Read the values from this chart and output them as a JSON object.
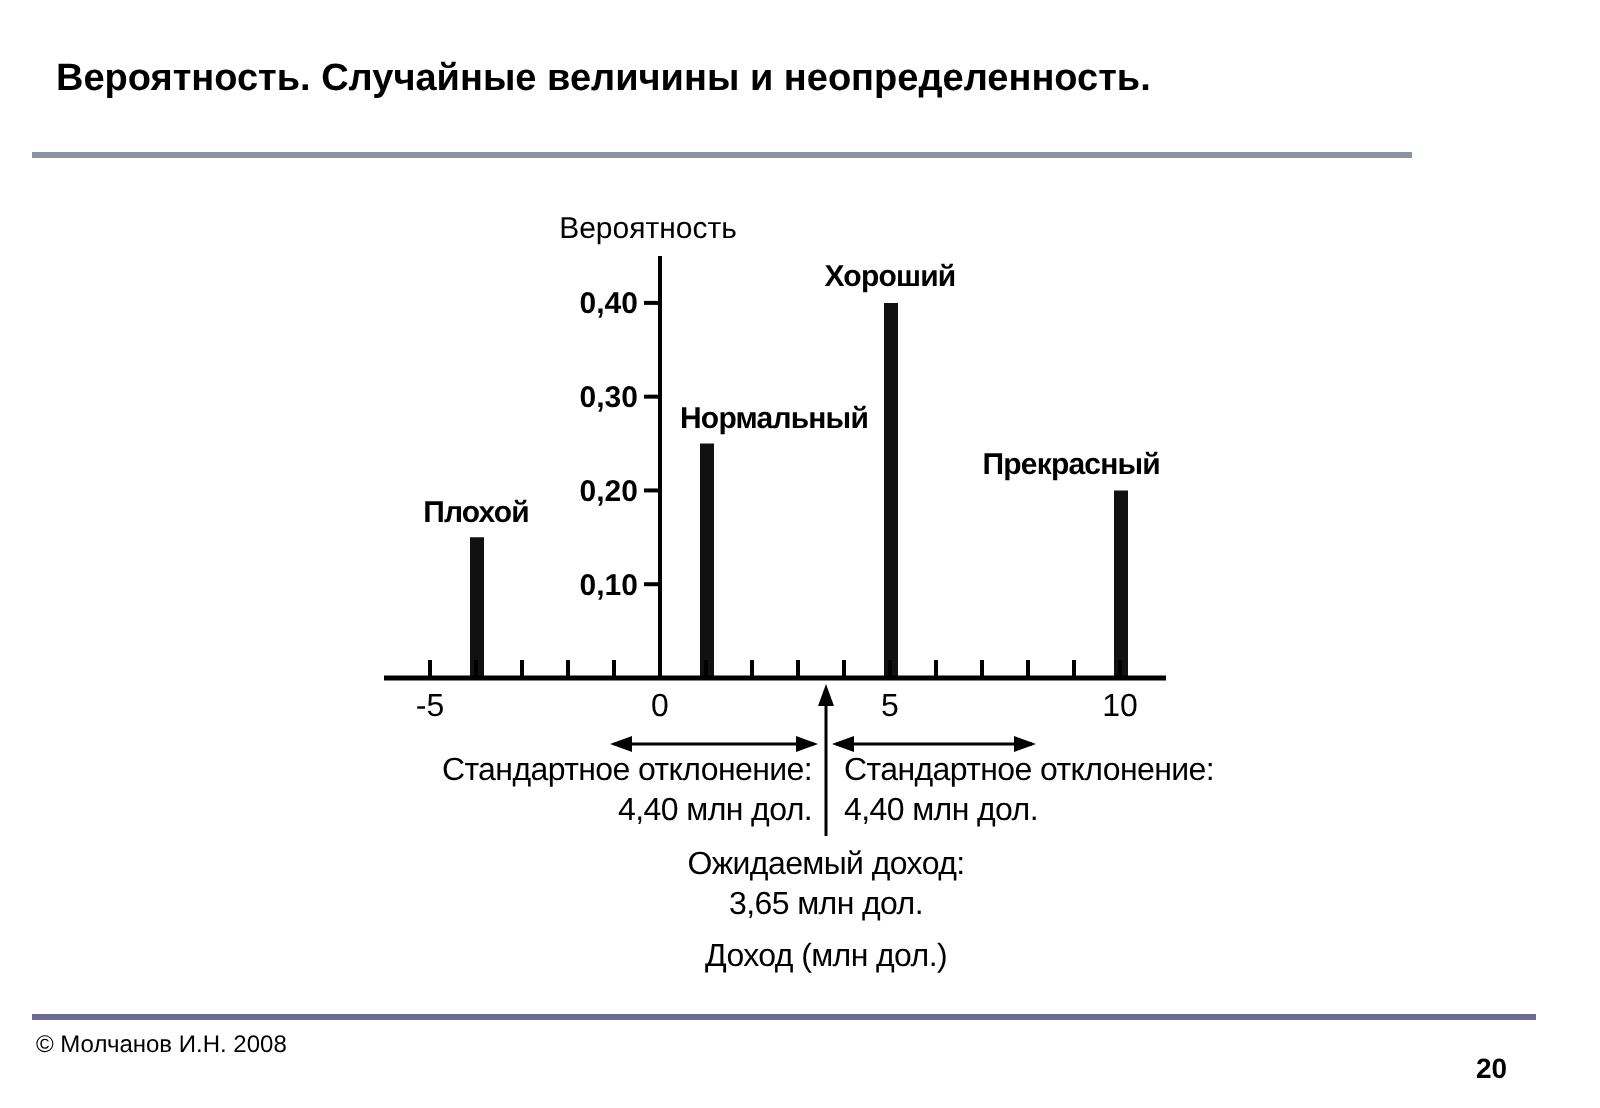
{
  "chart_data": {
    "type": "bar",
    "title": "Вероятность. Случайные величины и неопределенность.",
    "ylabel": "Вероятность",
    "x": [
      -4,
      1,
      5,
      10
    ],
    "values": [
      0.15,
      0.25,
      0.4,
      0.2
    ],
    "color": "#111111",
    "xlim": [
      -6,
      11
    ],
    "xticks": [
      -5,
      {
        "value": -4,
        "label": null
      },
      {
        "value": -3,
        "label": null
      },
      {
        "value": -2,
        "label": null
      },
      {
        "value": -1,
        "label": null
      },
      0,
      {
        "value": 1,
        "label": null
      },
      {
        "value": 2,
        "label": null
      },
      {
        "value": 3,
        "label": null
      },
      {
        "value": 4,
        "label": null
      },
      5,
      {
        "value": 6,
        "label": null
      },
      {
        "value": 7,
        "label": null
      },
      {
        "value": 8,
        "label": null
      },
      {
        "value": 9,
        "label": null
      },
      10
    ],
    "ylim": [
      0,
      0.45
    ],
    "yticks": [
      {
        "value": 0.1,
        "label": "0,10"
      },
      {
        "value": 0.2,
        "label": "0,20"
      },
      {
        "value": 0.3,
        "label": "0,30"
      },
      {
        "value": 0.4,
        "label": "0,40"
      }
    ],
    "annotations": [
      {
        "text": "Плохой",
        "x": -4,
        "y": 0.15
      },
      {
        "text": "Нормальный",
        "x": 1,
        "y": 0.25
      },
      {
        "text": "Хороший",
        "x": 5,
        "y": 0.4
      },
      {
        "text": "Прекрасный",
        "x": 10,
        "y": 0.2
      },
      "Стандартное отклонение:\n4,40 млн дол.",
      "Стандартное отклонение:\n4,40 млн дол.",
      "Ожидаемый доход:\n3,65 млн дол.",
      "Доход (млн дол.)",
      "© Молчанов И.Н. 2008",
      "20"
    ]
  }
}
